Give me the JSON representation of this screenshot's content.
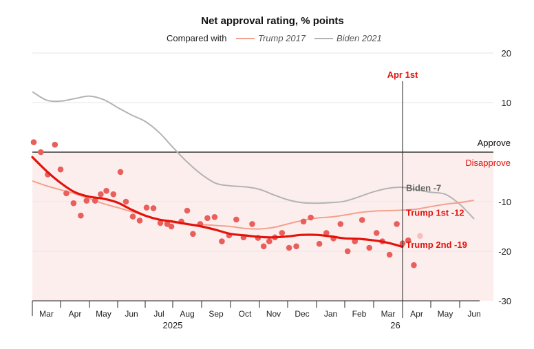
{
  "chart_data": {
    "type": "line",
    "title": "Net approval rating, % points",
    "legend": {
      "prefix": "Compared with",
      "entries": [
        {
          "name": "Trump 2017",
          "color": "#f4a08c"
        },
        {
          "name": "Biden 2021",
          "color": "#b3b3b3"
        }
      ]
    },
    "ylim": [
      -30,
      20
    ],
    "yticks": [
      {
        "value": 20,
        "label": "20"
      },
      {
        "value": 10,
        "label": "10"
      },
      {
        "value": -10,
        "label": "-10"
      },
      {
        "value": -20,
        "label": "-20"
      },
      {
        "value": -30,
        "label": "-30"
      }
    ],
    "xlim": [
      0,
      16
    ],
    "xticks": [
      "Mar",
      "Apr",
      "May",
      "Jun",
      "Jul",
      "Aug",
      "Sep",
      "Oct",
      "Nov",
      "Dec",
      "Jan",
      "Feb",
      "Mar",
      "Apr",
      "May",
      "Jun"
    ],
    "year_labels": [
      {
        "label": "2025",
        "x": 5.0
      },
      {
        "label": "26",
        "x": 12.75
      }
    ],
    "zero_line": {
      "approve_label": "Approve",
      "disapprove_label": "Disapprove"
    },
    "marker": {
      "label": "Apr 1st",
      "x": 13.0
    },
    "series": [
      {
        "name": "Biden 2021",
        "color": "#b3b3b3",
        "end_label": "Biden -7",
        "points": [
          [
            0,
            12.2
          ],
          [
            0.5,
            10.5
          ],
          [
            1,
            10.3
          ],
          [
            1.5,
            10.8
          ],
          [
            2,
            11.3
          ],
          [
            2.5,
            10.6
          ],
          [
            3,
            9
          ],
          [
            3.5,
            7.5
          ],
          [
            4,
            6.2
          ],
          [
            4.5,
            4
          ],
          [
            5,
            1
          ],
          [
            5.5,
            -2
          ],
          [
            6,
            -4.5
          ],
          [
            6.5,
            -6.3
          ],
          [
            7,
            -6.8
          ],
          [
            7.5,
            -7
          ],
          [
            8,
            -7.5
          ],
          [
            8.5,
            -8.6
          ],
          [
            9,
            -9.6
          ],
          [
            9.5,
            -10.2
          ],
          [
            10,
            -10.3
          ],
          [
            10.5,
            -10.2
          ],
          [
            11,
            -9.9
          ],
          [
            11.5,
            -9
          ],
          [
            12,
            -8
          ],
          [
            12.5,
            -7.3
          ],
          [
            13,
            -7.1
          ],
          [
            13.5,
            -7.6
          ],
          [
            14,
            -8.1
          ],
          [
            14.5,
            -8.5
          ],
          [
            15,
            -10.5
          ],
          [
            15.5,
            -13.5
          ]
        ]
      },
      {
        "name": "Trump 2017",
        "color": "#f4a08c",
        "end_label": "Trump 1st -12",
        "points": [
          [
            0,
            -5.8
          ],
          [
            0.5,
            -6.8
          ],
          [
            1,
            -7.6
          ],
          [
            1.5,
            -8.4
          ],
          [
            2,
            -9.4
          ],
          [
            2.5,
            -10.4
          ],
          [
            3,
            -11.2
          ],
          [
            3.5,
            -12
          ],
          [
            4,
            -12.8
          ],
          [
            4.5,
            -13.6
          ],
          [
            5,
            -14.2
          ],
          [
            5.5,
            -14.6
          ],
          [
            6,
            -14.6
          ],
          [
            6.5,
            -14.8
          ],
          [
            7,
            -15
          ],
          [
            7.5,
            -15.4
          ],
          [
            8,
            -15.5
          ],
          [
            8.5,
            -15.2
          ],
          [
            9,
            -14.5
          ],
          [
            9.5,
            -13.8
          ],
          [
            10,
            -13.3
          ],
          [
            10.5,
            -13.1
          ],
          [
            11,
            -12.7
          ],
          [
            11.5,
            -12.2
          ],
          [
            12,
            -11.9
          ],
          [
            12.5,
            -11.8
          ],
          [
            13,
            -11.7
          ],
          [
            13.5,
            -11.5
          ],
          [
            14,
            -11
          ],
          [
            14.5,
            -10.5
          ],
          [
            15,
            -10.2
          ],
          [
            15.5,
            -9.7
          ]
        ]
      },
      {
        "name": "Trump 2025",
        "color": "#e3120b",
        "end_label": "Trump 2nd -19",
        "points": [
          [
            0,
            -1
          ],
          [
            0.5,
            -3.8
          ],
          [
            1,
            -6.2
          ],
          [
            1.5,
            -8.1
          ],
          [
            2,
            -9
          ],
          [
            2.5,
            -9.4
          ],
          [
            3,
            -10.2
          ],
          [
            3.5,
            -11.6
          ],
          [
            4,
            -12.8
          ],
          [
            4.5,
            -13.6
          ],
          [
            5,
            -14
          ],
          [
            5.5,
            -14.5
          ],
          [
            6,
            -15
          ],
          [
            6.5,
            -15.7
          ],
          [
            7,
            -16.5
          ],
          [
            7.5,
            -16.8
          ],
          [
            8,
            -17.1
          ],
          [
            8.5,
            -17.2
          ],
          [
            9,
            -17
          ],
          [
            9.5,
            -16.7
          ],
          [
            10,
            -16.7
          ],
          [
            10.5,
            -17
          ],
          [
            11,
            -17.4
          ],
          [
            11.5,
            -17.5
          ],
          [
            12,
            -17.8
          ],
          [
            12.5,
            -18.3
          ],
          [
            13,
            -19.1
          ]
        ]
      }
    ],
    "polls": [
      [
        0.05,
        2
      ],
      [
        0.3,
        0
      ],
      [
        0.55,
        -4.5
      ],
      [
        0.8,
        1.5
      ],
      [
        1.0,
        -3.5
      ],
      [
        1.2,
        -8.3
      ],
      [
        1.45,
        -10.3
      ],
      [
        1.7,
        -12.8
      ],
      [
        1.9,
        -9.8
      ],
      [
        2.2,
        -9.8
      ],
      [
        2.4,
        -8.5
      ],
      [
        2.6,
        -7.8
      ],
      [
        2.85,
        -8.5
      ],
      [
        3.1,
        -4
      ],
      [
        3.3,
        -10
      ],
      [
        3.55,
        -13
      ],
      [
        3.8,
        -13.8
      ],
      [
        4.05,
        -11.2
      ],
      [
        4.3,
        -11.3
      ],
      [
        4.55,
        -14.3
      ],
      [
        4.8,
        -14.5
      ],
      [
        4.95,
        -15
      ],
      [
        5.3,
        -14
      ],
      [
        5.5,
        -11.8
      ],
      [
        5.7,
        -16.5
      ],
      [
        5.95,
        -14.5
      ],
      [
        6.2,
        -13.3
      ],
      [
        6.45,
        -13.1
      ],
      [
        6.7,
        -18
      ],
      [
        6.95,
        -16.8
      ],
      [
        7.2,
        -13.6
      ],
      [
        7.45,
        -17.2
      ],
      [
        7.75,
        -14.5
      ],
      [
        7.95,
        -17.3
      ],
      [
        8.15,
        -19
      ],
      [
        8.35,
        -18
      ],
      [
        8.55,
        -17.2
      ],
      [
        8.8,
        -16.3
      ],
      [
        9.05,
        -19.3
      ],
      [
        9.3,
        -19
      ],
      [
        9.55,
        -14
      ],
      [
        9.8,
        -13.2
      ],
      [
        10.1,
        -18.5
      ],
      [
        10.35,
        -16.3
      ],
      [
        10.6,
        -17.4
      ],
      [
        10.85,
        -14.5
      ],
      [
        11.1,
        -20
      ],
      [
        11.35,
        -18
      ],
      [
        11.6,
        -13.7
      ],
      [
        11.85,
        -19.3
      ],
      [
        12.1,
        -16.3
      ],
      [
        12.3,
        -18
      ],
      [
        12.55,
        -20.7
      ],
      [
        12.8,
        -14.5
      ],
      [
        13.0,
        -18.4
      ],
      [
        13.2,
        -17.8
      ],
      [
        13.4,
        -22.8
      ]
    ],
    "faded_poll": [
      13.62,
      -16.9
    ]
  }
}
